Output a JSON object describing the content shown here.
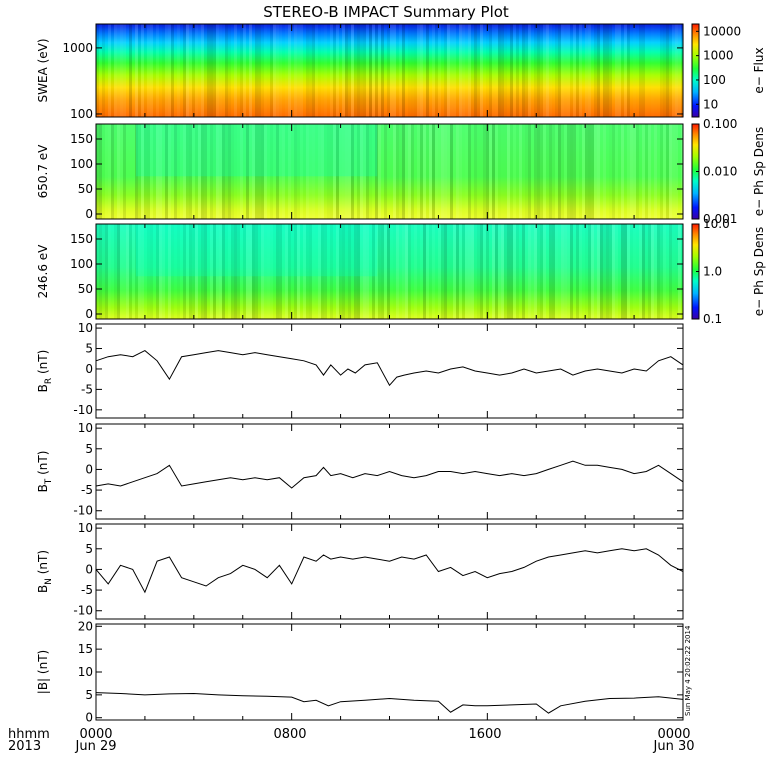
{
  "title": "STEREO-B IMPACT Summary Plot",
  "footer": {
    "left_top": "hhmm",
    "left_bottom": "2013",
    "ticks": [
      {
        "hhmm": "0000",
        "date": "Jun 29"
      },
      {
        "hhmm": "0800",
        "date": ""
      },
      {
        "hhmm": "1600",
        "date": ""
      },
      {
        "hhmm": "0000",
        "date": "Jun 30"
      }
    ]
  },
  "timestamp_note": "Sun May 4 20:02:22 2014",
  "colors": {
    "line": "#000000",
    "colormap": [
      "#3a00a6",
      "#0015ff",
      "#00b4ff",
      "#00ffc8",
      "#1fff3a",
      "#a5ff00",
      "#ffe600",
      "#ff8c00",
      "#ff1a00"
    ]
  },
  "chart_data": [
    {
      "type": "heatmap",
      "ylabel": "SWEA (eV)",
      "scale": "log",
      "ylim": [
        90,
        2300
      ],
      "yticks": [
        "1000",
        "100"
      ],
      "ytick_values": [
        1000,
        100
      ],
      "colorbar": {
        "label": "e− Flux",
        "scale": "log",
        "range": [
          3,
          20000
        ],
        "ticks": [
          "10000",
          "1000",
          "100",
          "10"
        ],
        "tick_values": [
          10000,
          1000,
          100,
          10
        ]
      },
      "description_profile": "flux highest (~10000) near 100 eV, decreasing to ~10 near 1500 eV"
    },
    {
      "type": "heatmap",
      "ylabel": "650.7 eV",
      "ylim": [
        -10,
        180
      ],
      "yticks": [
        "150",
        "100",
        "50",
        "0"
      ],
      "ytick_values": [
        150,
        100,
        50,
        0
      ],
      "colorbar": {
        "label": "e− Ph Sp Dens",
        "scale": "log",
        "range": [
          0.001,
          0.1
        ],
        "ticks": [
          "0.100",
          "0.010",
          "0.001"
        ],
        "tick_values": [
          0.1,
          0.01,
          0.001
        ]
      }
    },
    {
      "type": "heatmap",
      "ylabel": "246.6 eV",
      "ylim": [
        -10,
        180
      ],
      "yticks": [
        "150",
        "100",
        "50",
        "0"
      ],
      "ytick_values": [
        150,
        100,
        50,
        0
      ],
      "colorbar": {
        "label": "e− Ph Sp Dens",
        "scale": "log",
        "range": [
          0.1,
          10
        ],
        "ticks": [
          "10.0",
          "1.0",
          "0.1"
        ],
        "tick_values": [
          10,
          1,
          0.1
        ]
      }
    },
    {
      "type": "line",
      "ylabel": "B",
      "ylabel_sub": "R",
      "ylabel_unit": "(nT)",
      "ylim": [
        -12,
        11
      ],
      "yticks": [
        "10",
        "5",
        "0",
        "-5",
        "-10"
      ],
      "ytick_values": [
        10,
        5,
        0,
        -5,
        -10
      ],
      "x_hours": [
        0,
        0.5,
        1,
        1.5,
        2,
        2.5,
        3,
        3.5,
        4,
        4.5,
        5,
        5.5,
        6,
        6.5,
        7,
        7.5,
        8,
        8.5,
        9,
        9.3,
        9.6,
        10,
        10.3,
        10.6,
        11,
        11.5,
        12,
        12.3,
        12.6,
        13,
        13.5,
        14,
        14.5,
        15,
        15.5,
        16,
        16.5,
        17,
        17.5,
        18,
        18.5,
        19,
        19.5,
        20,
        20.5,
        21,
        21.5,
        22,
        22.5,
        23,
        23.5,
        24
      ],
      "y": [
        2,
        3,
        3.5,
        3,
        4.5,
        2,
        -2.5,
        3,
        3.5,
        4,
        4.5,
        4,
        3.5,
        4,
        3.5,
        3,
        2.5,
        2,
        1,
        -1.5,
        1,
        -1.5,
        0,
        -1,
        1,
        1.5,
        -4,
        -2,
        -1.5,
        -1,
        -0.5,
        -1,
        0,
        0.5,
        -0.5,
        -1,
        -1.5,
        -1,
        0,
        -1,
        -0.5,
        0,
        -1.5,
        -0.5,
        0,
        -0.5,
        -1,
        0,
        -0.5,
        2,
        3,
        1
      ]
    },
    {
      "type": "line",
      "ylabel": "B",
      "ylabel_sub": "T",
      "ylabel_unit": "(nT)",
      "ylim": [
        -12,
        11
      ],
      "yticks": [
        "10",
        "5",
        "0",
        "-5",
        "-10"
      ],
      "ytick_values": [
        10,
        5,
        0,
        -5,
        -10
      ],
      "x_hours": [
        0,
        0.5,
        1,
        1.5,
        2,
        2.5,
        3,
        3.5,
        4,
        4.5,
        5,
        5.5,
        6,
        6.5,
        7,
        7.5,
        8,
        8.5,
        9,
        9.3,
        9.6,
        10,
        10.5,
        11,
        11.5,
        12,
        12.5,
        13,
        13.5,
        14,
        14.5,
        15,
        15.5,
        16,
        16.5,
        17,
        17.5,
        18,
        18.5,
        19,
        19.5,
        20,
        20.5,
        21,
        21.5,
        22,
        22.5,
        23,
        23.5,
        24
      ],
      "y": [
        -4,
        -3.5,
        -4,
        -3,
        -2,
        -1,
        1,
        -4,
        -3.5,
        -3,
        -2.5,
        -2,
        -2.5,
        -2,
        -2.5,
        -2,
        -4.5,
        -2,
        -1.5,
        0.5,
        -1.5,
        -1,
        -2,
        -1,
        -1.5,
        -0.5,
        -1.5,
        -2,
        -1.5,
        -0.5,
        -0.5,
        -1,
        -0.5,
        -1,
        -1.5,
        -1,
        -1.5,
        -1,
        0,
        1,
        2,
        1,
        1,
        0.5,
        0,
        -1,
        -0.5,
        1,
        -1,
        -3
      ]
    },
    {
      "type": "line",
      "ylabel": "B",
      "ylabel_sub": "N",
      "ylabel_unit": "(nT)",
      "ylim": [
        -12,
        11
      ],
      "yticks": [
        "10",
        "5",
        "0",
        "-5",
        "-10"
      ],
      "ytick_values": [
        10,
        5,
        0,
        -5,
        -10
      ],
      "x_hours": [
        0,
        0.5,
        1,
        1.5,
        2,
        2.5,
        3,
        3.5,
        4,
        4.5,
        5,
        5.5,
        6,
        6.5,
        7,
        7.5,
        8,
        8.5,
        9,
        9.3,
        9.6,
        10,
        10.5,
        11,
        11.5,
        12,
        12.5,
        13,
        13.5,
        14,
        14.5,
        15,
        15.5,
        16,
        16.5,
        17,
        17.5,
        18,
        18.5,
        19,
        19.5,
        20,
        20.5,
        21,
        21.5,
        22,
        22.5,
        23,
        23.5,
        24
      ],
      "y": [
        0,
        -3.5,
        1,
        0,
        -5.5,
        2,
        3,
        -2,
        -3,
        -4,
        -2,
        -1,
        1,
        0,
        -2,
        1,
        -3.5,
        3,
        2,
        3.5,
        2.5,
        3,
        2.5,
        3,
        2.5,
        2,
        3,
        2.5,
        3.5,
        -0.5,
        0.5,
        -1.5,
        -0.5,
        -2,
        -1,
        -0.5,
        0.5,
        2,
        3,
        3.5,
        4,
        4.5,
        4,
        4.5,
        5,
        4.5,
        5,
        3.5,
        1,
        -0.5
      ]
    },
    {
      "type": "line",
      "ylabel": "|B|",
      "ylabel_unit": "(nT)",
      "ylim": [
        -0.5,
        20.5
      ],
      "yticks": [
        "20",
        "15",
        "10",
        "5",
        "0"
      ],
      "ytick_values": [
        20,
        15,
        10,
        5,
        0
      ],
      "x_hours": [
        0,
        1,
        2,
        3,
        4,
        5,
        6,
        7,
        8,
        8.5,
        9,
        9.5,
        10,
        11,
        12,
        13,
        14,
        14.5,
        15,
        15.5,
        16,
        17,
        18,
        18.5,
        19,
        20,
        21,
        22,
        23,
        24
      ],
      "y": [
        5.5,
        5.3,
        5,
        5.2,
        5.3,
        5,
        4.8,
        4.7,
        4.5,
        3.5,
        3.8,
        2.6,
        3.5,
        3.8,
        4.2,
        3.8,
        3.6,
        1.2,
        2.8,
        2.6,
        2.6,
        2.8,
        3,
        1,
        2.6,
        3.6,
        4.2,
        4.3,
        4.6,
        4
      ]
    }
  ]
}
